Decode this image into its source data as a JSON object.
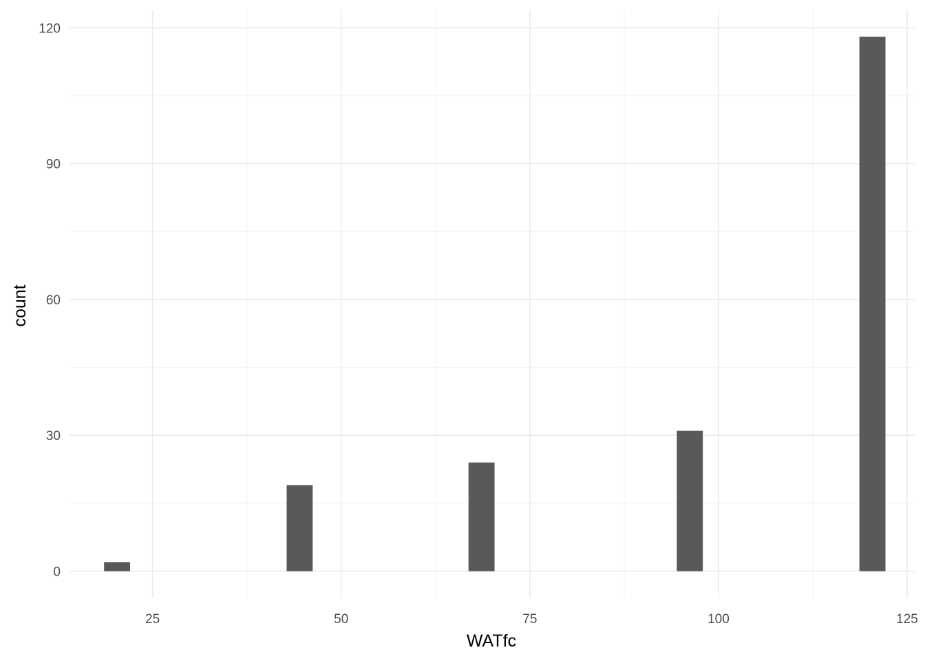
{
  "chart_data": {
    "type": "bar",
    "title": "",
    "xlabel": "WATfc",
    "ylabel": "count",
    "xlim": [
      14,
      126
    ],
    "ylim": [
      -6,
      124
    ],
    "x_ticks": [
      25,
      50,
      75,
      100,
      125
    ],
    "x_tick_labels": [
      "25",
      "50",
      "75",
      "100",
      "125"
    ],
    "x_minor_ticks": [
      37.5,
      62.5,
      87.5,
      112.5
    ],
    "y_ticks": [
      0,
      30,
      60,
      90,
      120
    ],
    "y_tick_labels": [
      "0",
      "30",
      "60",
      "90",
      "120"
    ],
    "y_minor_ticks": [
      15,
      45,
      75,
      105
    ],
    "bin_width": 3.45,
    "bins": [
      {
        "x": 20.3,
        "count": 2
      },
      {
        "x": 44.5,
        "count": 19
      },
      {
        "x": 68.6,
        "count": 24
      },
      {
        "x": 96.2,
        "count": 31
      },
      {
        "x": 120.4,
        "count": 118
      }
    ],
    "grid": true,
    "legend": "none",
    "colors": {
      "bar": "#595959",
      "grid_major": "#ebebeb",
      "grid_minor": "#f2f2f2",
      "tick_text": "#4d4d4d",
      "axis_title": "#000000"
    }
  }
}
